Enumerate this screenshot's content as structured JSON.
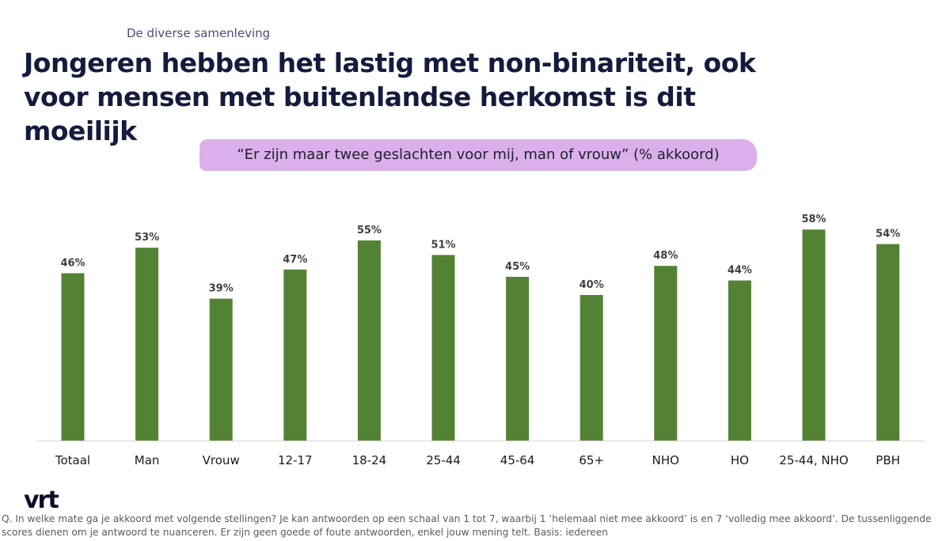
{
  "header": {
    "kicker": "De diverse samenleving",
    "title": "Jongeren hebben het lastig met non-binariteit, ook voor mensen met buitenlandse herkomst is dit moeilijk"
  },
  "chart_data": {
    "type": "bar",
    "subtitle": "“Er zijn maar twee geslachten voor mij, man of vrouw” (% akkoord)",
    "categories": [
      "Totaal",
      "Man",
      "Vrouw",
      "12-17",
      "18-24",
      "25-44",
      "45-64",
      "65+",
      "NHO",
      "HO",
      "25-44, NHO",
      "PBH"
    ],
    "values": [
      46,
      53,
      39,
      47,
      55,
      51,
      45,
      40,
      48,
      44,
      58,
      54
    ],
    "data_labels": [
      "46%",
      "53%",
      "39%",
      "47%",
      "55%",
      "51%",
      "45%",
      "40%",
      "48%",
      "44%",
      "58%",
      "54%"
    ],
    "ylim": [
      0,
      62
    ],
    "bar_color": "#548235",
    "grid": false,
    "legend": "none"
  },
  "footer": {
    "logo": "vrt",
    "note": "Q. In welke mate ga je akkoord met volgende stellingen? Je kan antwoorden op een schaal van 1 tot 7, waarbij 1 ‘helemaal niet mee akkoord’ is en 7 ‘volledig mee akkoord’. De tussenliggende scores dienen om je antwoord te nuanceren. Er zijn geen goede of foute antwoorden, enkel jouw mening telt.  Basis: iedereen"
  }
}
